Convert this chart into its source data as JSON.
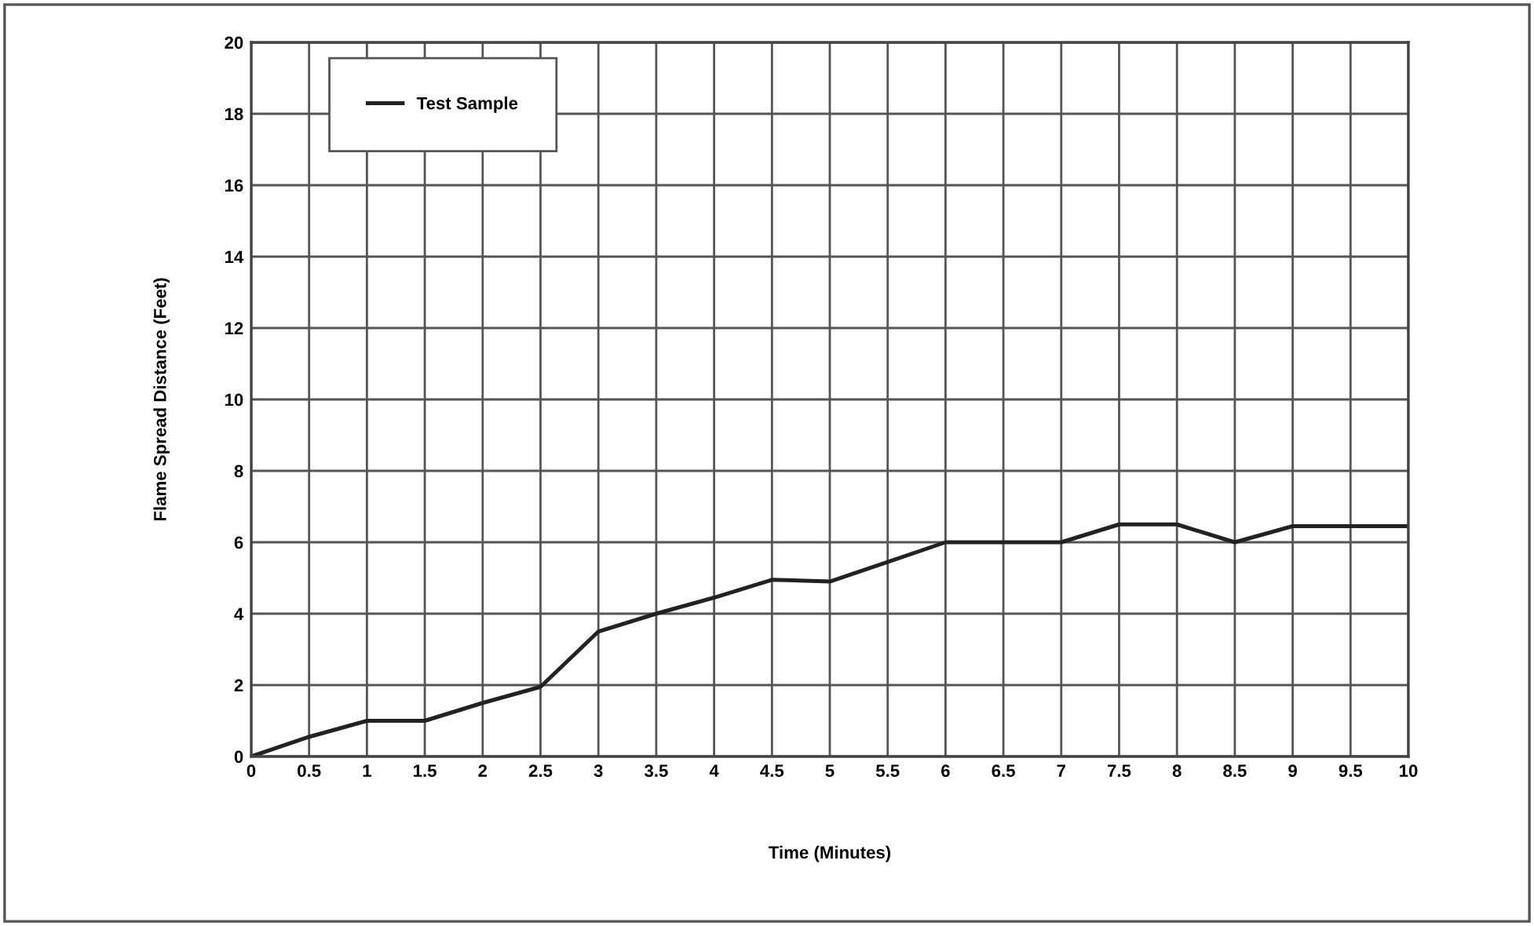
{
  "chart_data": {
    "type": "line",
    "xlabel": "Time (Minutes)",
    "ylabel": "Flame Spread Distance (Feet)",
    "x": [
      0,
      0.5,
      1,
      1.5,
      2,
      2.5,
      3,
      3.5,
      4,
      4.5,
      5,
      5.5,
      6,
      6.5,
      7,
      7.5,
      8,
      8.5,
      9,
      9.5,
      10
    ],
    "series": [
      {
        "name": "Test Sample",
        "color": "#222222",
        "values": [
          0,
          0.55,
          1.0,
          1.0,
          1.5,
          1.95,
          3.5,
          4.0,
          4.45,
          4.95,
          4.9,
          5.45,
          6.0,
          6.0,
          6.0,
          6.5,
          6.5,
          6.0,
          6.45,
          6.45,
          6.45
        ]
      }
    ],
    "xlim": [
      0,
      10
    ],
    "xticks": [
      0,
      0.5,
      1,
      1.5,
      2,
      2.5,
      3,
      3.5,
      4,
      4.5,
      5,
      5.5,
      6,
      6.5,
      7,
      7.5,
      8,
      8.5,
      9,
      9.5,
      10
    ],
    "ylim": [
      0,
      20
    ],
    "yticks": [
      0,
      2,
      4,
      6,
      8,
      10,
      12,
      14,
      16,
      18,
      20
    ],
    "grid": true,
    "legend": "top left",
    "marker": "none",
    "line_style": "solid"
  }
}
